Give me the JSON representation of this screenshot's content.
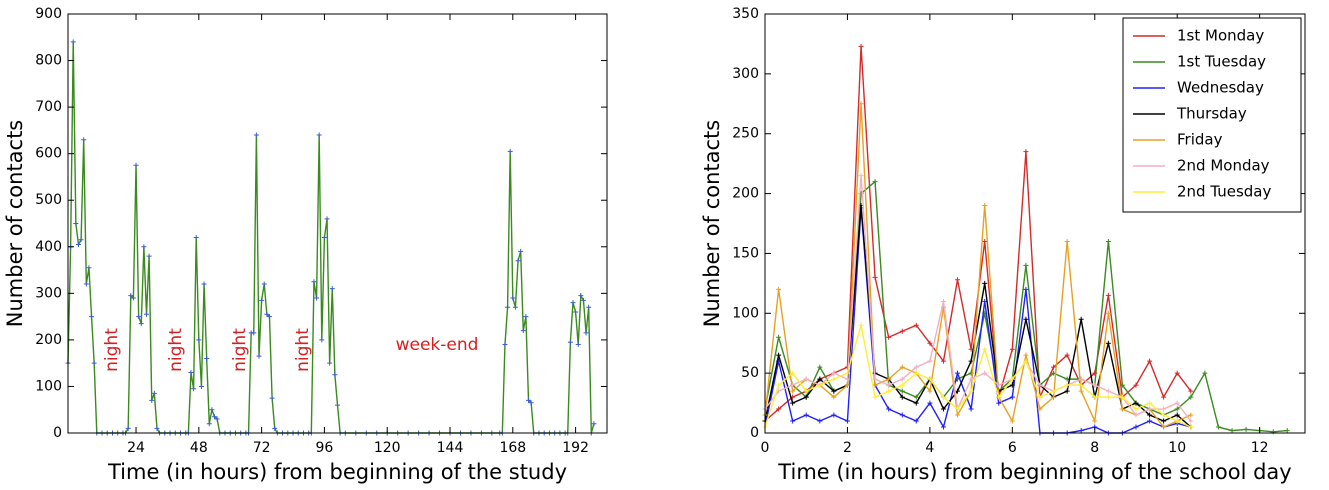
{
  "chart_data": [
    {
      "type": "line",
      "xlabel": "Time (in hours) from beginning of the study",
      "ylabel": "Number of contacts",
      "x": [
        -2,
        -1,
        0,
        1,
        2,
        3,
        4,
        5,
        6,
        7,
        8,
        9,
        11,
        13,
        15,
        17,
        19,
        20,
        21,
        22,
        23,
        24,
        25,
        26,
        27,
        28,
        29,
        30,
        31,
        32,
        33,
        35,
        37,
        39,
        41,
        43,
        44,
        45,
        46,
        47,
        48,
        49,
        50,
        51,
        52,
        53,
        54,
        55,
        56,
        58,
        60,
        62,
        64,
        66,
        67,
        68,
        69,
        70,
        71,
        72,
        73,
        74,
        75,
        76,
        77,
        78,
        80,
        82,
        84,
        86,
        88,
        90,
        91,
        92,
        93,
        94,
        95,
        96,
        97,
        98,
        99,
        100,
        101,
        102,
        104,
        108,
        112,
        116,
        120,
        124,
        128,
        132,
        136,
        140,
        144,
        148,
        152,
        156,
        160,
        163,
        164,
        165,
        166,
        167,
        168,
        169,
        170,
        171,
        172,
        173,
        174,
        175,
        176,
        178,
        180,
        182,
        184,
        186,
        188,
        189,
        190,
        191,
        192,
        193,
        194,
        195,
        196,
        197,
        198,
        199
      ],
      "values": [
        150,
        400,
        840,
        450,
        405,
        415,
        630,
        320,
        355,
        250,
        150,
        0,
        0,
        0,
        0,
        0,
        0,
        0,
        10,
        295,
        290,
        575,
        250,
        235,
        400,
        255,
        380,
        70,
        85,
        10,
        0,
        0,
        0,
        0,
        0,
        0,
        0,
        130,
        95,
        420,
        200,
        100,
        320,
        160,
        20,
        50,
        35,
        30,
        0,
        0,
        0,
        0,
        0,
        0,
        0,
        215,
        215,
        640,
        165,
        285,
        320,
        255,
        250,
        75,
        10,
        0,
        0,
        0,
        0,
        0,
        0,
        0,
        0,
        325,
        290,
        640,
        200,
        420,
        460,
        150,
        310,
        125,
        60,
        0,
        0,
        0,
        0,
        0,
        0,
        0,
        0,
        0,
        0,
        0,
        0,
        0,
        0,
        0,
        0,
        0,
        0,
        190,
        270,
        605,
        290,
        270,
        370,
        390,
        220,
        250,
        70,
        65,
        0,
        0,
        0,
        0,
        0,
        0,
        0,
        0,
        195,
        280,
        260,
        190,
        295,
        285,
        215,
        270,
        0,
        20
      ],
      "color": "#3a8a1e",
      "marker_color": "#3a5fd0",
      "xlim": [
        -2,
        204
      ],
      "ylim": [
        0,
        900
      ],
      "xticks": [
        24,
        48,
        72,
        96,
        120,
        144,
        168,
        192
      ],
      "yticks": [
        0,
        100,
        200,
        300,
        400,
        500,
        600,
        700,
        800,
        900
      ],
      "annotations": [
        "night",
        "night",
        "night",
        "night",
        "week-end"
      ]
    },
    {
      "type": "line",
      "xlabel": "Time (in hours) from beginning of the school day",
      "ylabel": "Number of contacts",
      "x": [
        0,
        0.33,
        0.67,
        1,
        1.33,
        1.67,
        2,
        2.33,
        2.67,
        3,
        3.33,
        3.67,
        4,
        4.33,
        4.67,
        5,
        5.33,
        5.67,
        6,
        6.33,
        6.67,
        7,
        7.33,
        7.67,
        8,
        8.33,
        8.67,
        9,
        9.33,
        9.67,
        10,
        10.33,
        10.67,
        11,
        11.33,
        11.67,
        12,
        12.33,
        12.67
      ],
      "series": [
        {
          "name": "1st Monday",
          "color": "#d42a2a",
          "values": [
            10,
            20,
            30,
            35,
            45,
            50,
            55,
            323,
            130,
            80,
            85,
            90,
            75,
            60,
            128,
            70,
            160,
            30,
            70,
            235,
            30,
            55,
            65,
            40,
            50,
            115,
            30,
            40,
            60,
            30,
            50,
            35,
            null,
            null,
            null,
            null,
            null,
            null,
            null
          ]
        },
        {
          "name": "1st Tuesday",
          "color": "#3a8a1e",
          "values": [
            20,
            80,
            40,
            30,
            55,
            35,
            40,
            200,
            210,
            40,
            35,
            30,
            45,
            30,
            45,
            50,
            100,
            35,
            45,
            140,
            40,
            50,
            45,
            45,
            40,
            160,
            40,
            25,
            20,
            15,
            20,
            30,
            50,
            5,
            2,
            3,
            2,
            1,
            2
          ]
        },
        {
          "name": "Wednesday",
          "color": "#2020ff",
          "values": [
            5,
            60,
            10,
            15,
            10,
            15,
            10,
            188,
            40,
            20,
            15,
            10,
            25,
            5,
            50,
            20,
            110,
            25,
            30,
            120,
            0,
            0,
            0,
            2,
            5,
            0,
            0,
            5,
            10,
            5,
            8,
            5,
            null,
            null,
            null,
            null,
            null,
            null,
            null
          ]
        },
        {
          "name": "Thursday",
          "color": "#000000",
          "values": [
            10,
            65,
            25,
            30,
            45,
            35,
            40,
            190,
            50,
            45,
            30,
            25,
            45,
            20,
            35,
            60,
            125,
            35,
            40,
            95,
            40,
            30,
            35,
            95,
            30,
            75,
            20,
            25,
            15,
            10,
            15,
            5,
            null,
            null,
            null,
            null,
            null,
            null,
            null
          ]
        },
        {
          "name": "Friday",
          "color": "#e8a020",
          "values": [
            15,
            120,
            35,
            45,
            40,
            30,
            40,
            275,
            40,
            45,
            55,
            50,
            35,
            105,
            15,
            35,
            190,
            30,
            10,
            65,
            20,
            30,
            160,
            35,
            10,
            100,
            20,
            15,
            20,
            5,
            10,
            15,
            null,
            null,
            null,
            null,
            null,
            null,
            null
          ]
        },
        {
          "name": "2nd Monday",
          "color": "#f0b0c0",
          "values": [
            20,
            35,
            40,
            45,
            40,
            50,
            45,
            215,
            45,
            40,
            45,
            55,
            60,
            110,
            20,
            45,
            50,
            40,
            45,
            60,
            40,
            35,
            40,
            45,
            40,
            35,
            30,
            15,
            20,
            20,
            25,
            10,
            null,
            null,
            null,
            null,
            null,
            null,
            null
          ]
        },
        {
          "name": "2nd Tuesday",
          "color": "#ffee33",
          "values": [
            5,
            40,
            50,
            35,
            40,
            45,
            50,
            90,
            30,
            35,
            40,
            50,
            45,
            30,
            20,
            35,
            70,
            30,
            45,
            60,
            30,
            35,
            40,
            40,
            30,
            30,
            30,
            20,
            25,
            15,
            10,
            5,
            null,
            null,
            null,
            null,
            null,
            null,
            null
          ]
        }
      ],
      "xlim": [
        0,
        13.1
      ],
      "ylim": [
        0,
        350
      ],
      "xticks": [
        0,
        2,
        4,
        6,
        8,
        10,
        12
      ],
      "yticks": [
        0,
        50,
        100,
        150,
        200,
        250,
        300,
        350
      ],
      "legend": "upper right"
    }
  ]
}
